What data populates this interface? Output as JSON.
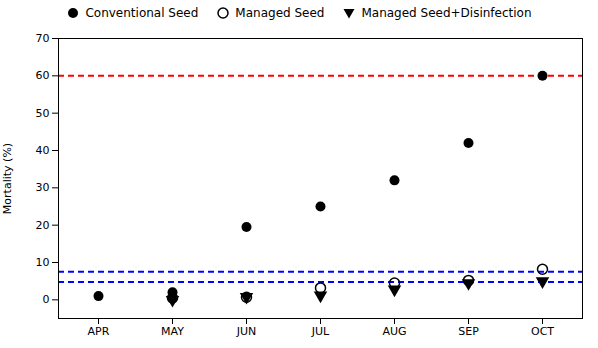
{
  "chart_data": {
    "type": "scatter",
    "categories": [
      "APR",
      "MAY",
      "JUN",
      "JUL",
      "AUG",
      "SEP",
      "OCT"
    ],
    "series": [
      {
        "name": "Conventional Seed",
        "color": "#000000",
        "marker": "circle",
        "values": [
          1,
          2,
          19.5,
          25,
          32,
          42,
          60
        ]
      },
      {
        "name": "Managed Seed",
        "color": "#000000",
        "marker": "open_circle",
        "values": [
          null,
          0.5,
          0.7,
          3.2,
          4.5,
          5.2,
          8.2
        ]
      },
      {
        "name": "Managed Seed+Disinfection",
        "color": "#000000",
        "marker": "triangle_down",
        "values": [
          null,
          0,
          0.8,
          1.2,
          2.8,
          4.5,
          5.0
        ]
      }
    ],
    "hlines": [
      {
        "value": 60,
        "color": "#FF0000",
        "line_style": "dashed"
      },
      {
        "value": 7.5,
        "color": "#0000FF",
        "line_style": "dashed"
      },
      {
        "value": 4.8,
        "color": "#0000FF",
        "line_style": "dashed"
      }
    ],
    "ylabel": "Mortality (%)",
    "ylim": [
      -5,
      70
    ],
    "yticks": [
      0,
      10,
      20,
      30,
      40,
      50,
      60,
      70
    ],
    "grid": false,
    "legend": "top"
  }
}
